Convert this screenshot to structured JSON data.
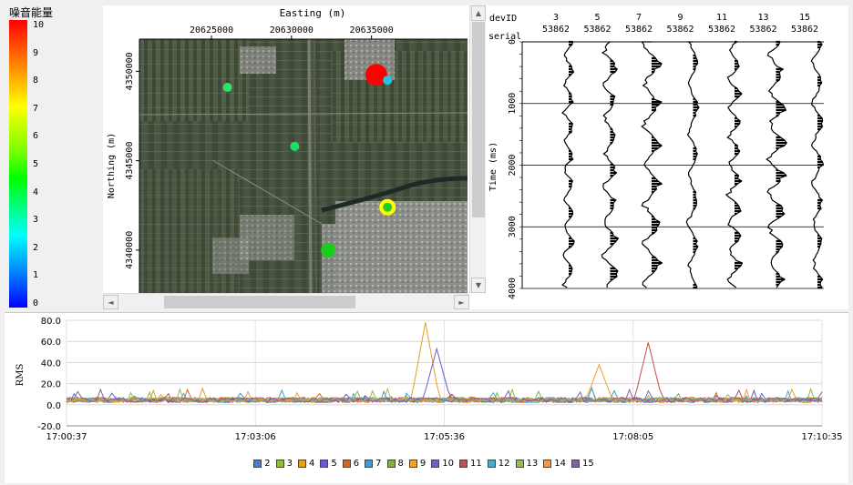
{
  "colorbar": {
    "title": "噪音能量",
    "ticks": [
      "10",
      "9",
      "8",
      "7",
      "6",
      "5",
      "4",
      "3",
      "2",
      "1",
      "0"
    ]
  },
  "map": {
    "xlabel": "Easting (m)",
    "ylabel": "Northing (m)",
    "xticks": [
      {
        "v": 20625000,
        "label": "20625000"
      },
      {
        "v": 20630000,
        "label": "20630000"
      },
      {
        "v": 20635000,
        "label": "20635000"
      }
    ],
    "yticks": [
      {
        "v": 4350000,
        "label": "4350000"
      },
      {
        "v": 4345000,
        "label": "4345000"
      },
      {
        "v": 4340000,
        "label": "4340000"
      }
    ],
    "xrange": [
      20620500,
      20641000
    ],
    "yrange": [
      4337600,
      4351800
    ],
    "points": [
      {
        "e": 20635300,
        "n": 4349800,
        "color": "#ff0000",
        "r": 12
      },
      {
        "e": 20636000,
        "n": 4349500,
        "color": "#22c4e6",
        "r": 5
      },
      {
        "e": 20626000,
        "n": 4349100,
        "color": "#2ee36a",
        "r": 5
      },
      {
        "e": 20630200,
        "n": 4345800,
        "color": "#1de066",
        "r": 5
      },
      {
        "e": 20636000,
        "n": 4342400,
        "color": "#ffff00",
        "r": 9
      },
      {
        "e": 20636000,
        "n": 4342400,
        "color": "#22cc22",
        "r": 5
      },
      {
        "e": 20632300,
        "n": 4340000,
        "color": "#1ccc1c",
        "r": 8
      }
    ],
    "hscroll_left": "◄",
    "hscroll_right": "►",
    "vscroll_up": "▲",
    "vscroll_down": "▼"
  },
  "seismic": {
    "devid_label": "devID",
    "serial_label": "serial",
    "ylabel": "Time (ms)",
    "traces": [
      {
        "id": "3",
        "serial": "53862"
      },
      {
        "id": "5",
        "serial": "53862"
      },
      {
        "id": "7",
        "serial": "53862"
      },
      {
        "id": "9",
        "serial": "53862"
      },
      {
        "id": "11",
        "serial": "53862"
      },
      {
        "id": "13",
        "serial": "53862"
      },
      {
        "id": "15",
        "serial": "53862"
      }
    ],
    "yticks": [
      {
        "v": 0,
        "label": "0"
      },
      {
        "v": 1000,
        "label": "1000"
      },
      {
        "v": 2000,
        "label": "2000"
      },
      {
        "v": 3000,
        "label": "3000"
      },
      {
        "v": 4000,
        "label": "4000"
      }
    ],
    "yrange": [
      0,
      4000
    ]
  },
  "chart_data": {
    "type": "line",
    "ylabel": "RMS",
    "ylim": [
      -20,
      80
    ],
    "yticks": [
      "80.0",
      "60.0",
      "40.0",
      "20.0",
      "0.0",
      "-20.0"
    ],
    "xticks": [
      "17:00:37",
      "17:03:06",
      "17:05:36",
      "17:08:05",
      "17:10:35"
    ],
    "legend_position": "bottom",
    "series": [
      {
        "name": "2",
        "color": "#4a7fc1",
        "peak": null
      },
      {
        "name": "3",
        "color": "#8fbc3f",
        "peak": null
      },
      {
        "name": "4",
        "color": "#e0a020",
        "peak": {
          "t": 0.475,
          "v": 78
        }
      },
      {
        "name": "5",
        "color": "#6a5acd",
        "peak": {
          "t": 0.49,
          "v": 53
        }
      },
      {
        "name": "6",
        "color": "#d2691e",
        "peak": null
      },
      {
        "name": "7",
        "color": "#3aa0d0",
        "peak": null
      },
      {
        "name": "8",
        "color": "#7cb342",
        "peak": null
      },
      {
        "name": "9",
        "color": "#f0a030",
        "peak": {
          "t": 0.705,
          "v": 38
        }
      },
      {
        "name": "10",
        "color": "#7060c0",
        "peak": null
      },
      {
        "name": "11",
        "color": "#c0504d",
        "peak": {
          "t": 0.77,
          "v": 59
        }
      },
      {
        "name": "12",
        "color": "#4bacc6",
        "peak": null
      },
      {
        "name": "13",
        "color": "#9bbb59",
        "peak": null
      },
      {
        "name": "14",
        "color": "#f79646",
        "peak": null
      },
      {
        "name": "15",
        "color": "#8064a2",
        "peak": null
      }
    ]
  }
}
